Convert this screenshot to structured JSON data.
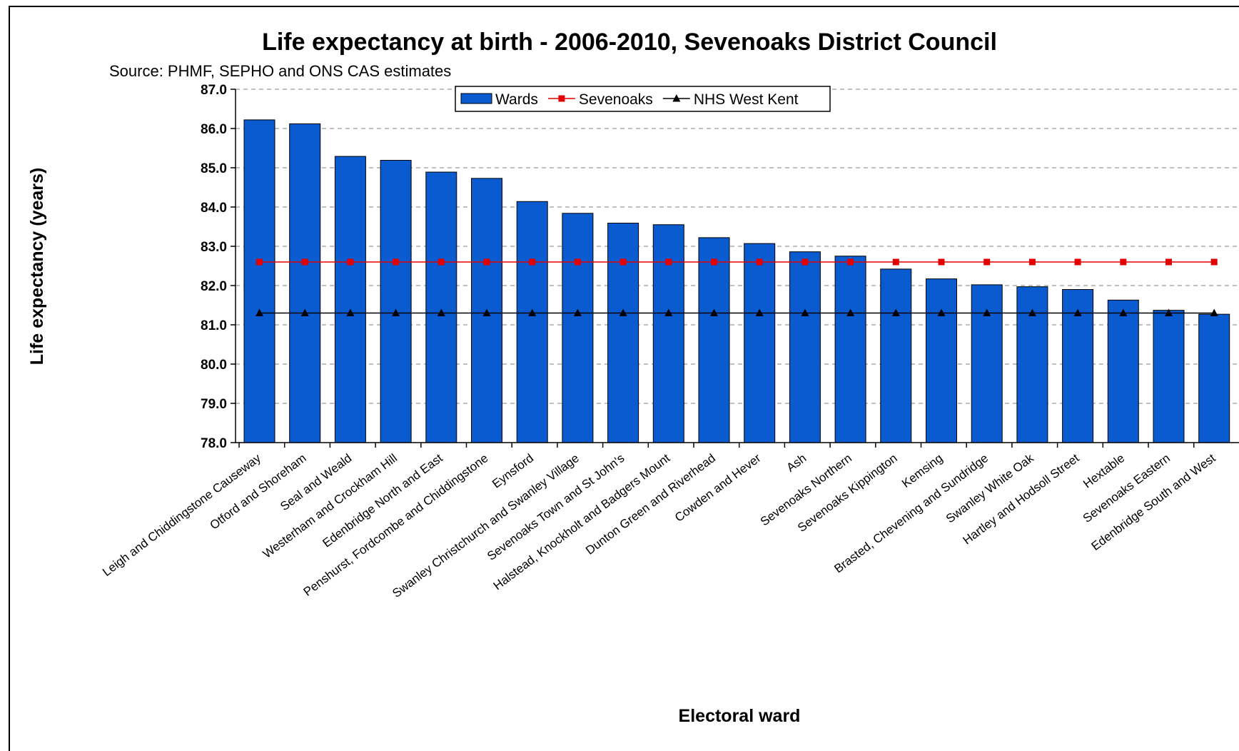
{
  "chart_data": {
    "type": "bar",
    "title": "Life expectancy at birth - 2006-2010, Sevenoaks District Council",
    "subtitle": "Source:  PHMF, SEPHO and ONS CAS estimates",
    "xlabel": "Electoral ward",
    "ylabel": "Life expectancy (years)",
    "ylim": [
      78.0,
      87.0
    ],
    "yticks": [
      "78.0",
      "79.0",
      "80.0",
      "81.0",
      "82.0",
      "83.0",
      "84.0",
      "85.0",
      "86.0",
      "87.0"
    ],
    "grid": "horizontal dashed",
    "legend_position": "top-center",
    "categories": [
      "Leigh and Chiddingstone Causeway",
      "Otford and Shoreham",
      "Seal and Weald",
      "Westerham and Crockham Hill",
      "Edenbridge North and East",
      "Penshurst, Fordcombe and Chiddingstone",
      "Eynsford",
      "Swanley Christchurch and Swanley Village",
      "Sevenoaks Town and St John's",
      "Halstead, Knockholt and Badgers Mount",
      "Dunton Green and Riverhead",
      "Cowden and Hever",
      "Ash",
      "Sevenoaks Northern",
      "Sevenoaks Kippington",
      "Kemsing",
      "Brasted, Chevening and Sundridge",
      "Swanley White Oak",
      "Hartley and Hodsoll Street",
      "Hextable",
      "Sevenoaks Eastern",
      "Edenbridge South and West"
    ],
    "series": [
      {
        "name": "Wards",
        "kind": "bar",
        "color": "#0a5bd0",
        "values": [
          86.22,
          86.12,
          85.29,
          85.19,
          84.89,
          84.73,
          84.14,
          83.84,
          83.59,
          83.55,
          83.22,
          83.07,
          82.86,
          82.75,
          82.42,
          82.17,
          82.02,
          81.97,
          81.9,
          81.63,
          81.37,
          81.27
        ]
      },
      {
        "name": "Sevenoaks",
        "kind": "line",
        "color": "#e30000",
        "marker": "square",
        "values": [
          82.6,
          82.6,
          82.6,
          82.6,
          82.6,
          82.6,
          82.6,
          82.6,
          82.6,
          82.6,
          82.6,
          82.6,
          82.6,
          82.6,
          82.6,
          82.6,
          82.6,
          82.6,
          82.6,
          82.6,
          82.6,
          82.6
        ]
      },
      {
        "name": "NHS West Kent",
        "kind": "line",
        "color": "#000000",
        "marker": "triangle",
        "values": [
          81.3,
          81.3,
          81.3,
          81.3,
          81.3,
          81.3,
          81.3,
          81.3,
          81.3,
          81.3,
          81.3,
          81.3,
          81.3,
          81.3,
          81.3,
          81.3,
          81.3,
          81.3,
          81.3,
          81.3,
          81.3,
          81.3
        ]
      }
    ]
  }
}
